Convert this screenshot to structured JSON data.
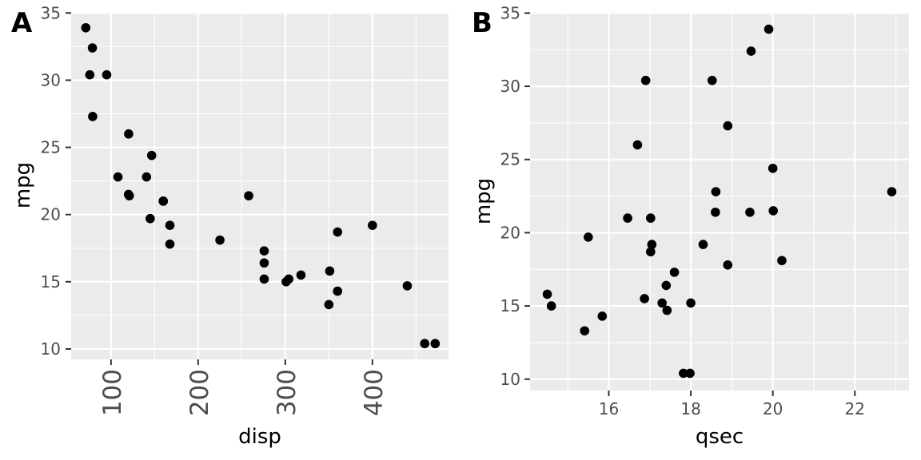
{
  "chart_data": [
    {
      "type": "scatter",
      "panel_tag": "A",
      "title": "",
      "xlabel": "disp",
      "ylabel": "mpg",
      "xlim": [
        54.3,
        487.3
      ],
      "ylim": [
        9.225,
        35.075
      ],
      "x_ticks": [
        100,
        200,
        300,
        400
      ],
      "x_tick_labels": [
        "100",
        "200",
        "300",
        "400"
      ],
      "x_tick_rotation": "vertical",
      "y_ticks": [
        10,
        15,
        20,
        25,
        30,
        35
      ],
      "y_tick_labels": [
        "10",
        "15",
        "20",
        "25",
        "30",
        "35"
      ],
      "grid": true,
      "points": [
        {
          "x": 160,
          "y": 21.0
        },
        {
          "x": 160,
          "y": 21.0
        },
        {
          "x": 108,
          "y": 22.8
        },
        {
          "x": 258,
          "y": 21.4
        },
        {
          "x": 360,
          "y": 18.7
        },
        {
          "x": 225,
          "y": 18.1
        },
        {
          "x": 360,
          "y": 14.3
        },
        {
          "x": 146.7,
          "y": 24.4
        },
        {
          "x": 140.8,
          "y": 22.8
        },
        {
          "x": 167.6,
          "y": 19.2
        },
        {
          "x": 167.6,
          "y": 17.8
        },
        {
          "x": 275.8,
          "y": 16.4
        },
        {
          "x": 275.8,
          "y": 17.3
        },
        {
          "x": 275.8,
          "y": 15.2
        },
        {
          "x": 472,
          "y": 10.4
        },
        {
          "x": 460,
          "y": 10.4
        },
        {
          "x": 440,
          "y": 14.7
        },
        {
          "x": 78.7,
          "y": 32.4
        },
        {
          "x": 75.7,
          "y": 30.4
        },
        {
          "x": 71.1,
          "y": 33.9
        },
        {
          "x": 120.1,
          "y": 21.5
        },
        {
          "x": 318,
          "y": 15.5
        },
        {
          "x": 304,
          "y": 15.2
        },
        {
          "x": 350,
          "y": 13.3
        },
        {
          "x": 400,
          "y": 19.2
        },
        {
          "x": 79,
          "y": 27.3
        },
        {
          "x": 120.3,
          "y": 26.0
        },
        {
          "x": 95.1,
          "y": 30.4
        },
        {
          "x": 351,
          "y": 15.8
        },
        {
          "x": 145,
          "y": 19.7
        },
        {
          "x": 301,
          "y": 15.0
        },
        {
          "x": 121,
          "y": 21.4
        }
      ]
    },
    {
      "type": "scatter",
      "panel_tag": "B",
      "title": "",
      "xlabel": "qsec",
      "ylabel": "mpg",
      "xlim": [
        14.08,
        23.32
      ],
      "ylim": [
        9.225,
        35.075
      ],
      "x_ticks": [
        16,
        18,
        20,
        22
      ],
      "x_tick_labels": [
        "16",
        "18",
        "20",
        "22"
      ],
      "x_tick_rotation": "horizontal",
      "y_ticks": [
        10,
        15,
        20,
        25,
        30,
        35
      ],
      "y_tick_labels": [
        "10",
        "15",
        "20",
        "25",
        "30",
        "35"
      ],
      "grid": true,
      "points": [
        {
          "x": 16.46,
          "y": 21.0
        },
        {
          "x": 17.02,
          "y": 21.0
        },
        {
          "x": 18.61,
          "y": 22.8
        },
        {
          "x": 19.44,
          "y": 21.4
        },
        {
          "x": 17.02,
          "y": 18.7
        },
        {
          "x": 20.22,
          "y": 18.1
        },
        {
          "x": 15.84,
          "y": 14.3
        },
        {
          "x": 20.0,
          "y": 24.4
        },
        {
          "x": 22.9,
          "y": 22.8
        },
        {
          "x": 18.3,
          "y": 19.2
        },
        {
          "x": 18.9,
          "y": 17.8
        },
        {
          "x": 17.4,
          "y": 16.4
        },
        {
          "x": 17.6,
          "y": 17.3
        },
        {
          "x": 18.0,
          "y": 15.2
        },
        {
          "x": 17.98,
          "y": 10.4
        },
        {
          "x": 17.82,
          "y": 10.4
        },
        {
          "x": 17.42,
          "y": 14.7
        },
        {
          "x": 19.47,
          "y": 32.4
        },
        {
          "x": 18.52,
          "y": 30.4
        },
        {
          "x": 19.9,
          "y": 33.9
        },
        {
          "x": 20.01,
          "y": 21.5
        },
        {
          "x": 16.87,
          "y": 15.5
        },
        {
          "x": 17.3,
          "y": 15.2
        },
        {
          "x": 15.41,
          "y": 13.3
        },
        {
          "x": 17.05,
          "y": 19.2
        },
        {
          "x": 18.9,
          "y": 27.3
        },
        {
          "x": 16.7,
          "y": 26.0
        },
        {
          "x": 16.9,
          "y": 30.4
        },
        {
          "x": 14.5,
          "y": 15.8
        },
        {
          "x": 15.5,
          "y": 19.7
        },
        {
          "x": 14.6,
          "y": 15.0
        },
        {
          "x": 18.6,
          "y": 21.4
        }
      ]
    }
  ]
}
